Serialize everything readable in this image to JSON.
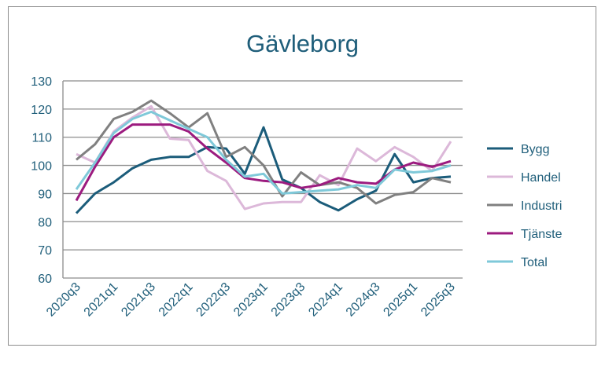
{
  "chart_data": {
    "type": "line",
    "title": "Gävleborg",
    "xlabel": "",
    "ylabel": "",
    "ylim": [
      60,
      130
    ],
    "yticks": [
      60,
      70,
      80,
      90,
      100,
      110,
      120,
      130
    ],
    "x": [
      "2020q3",
      "2020q4",
      "2021q1",
      "2021q2",
      "2021q3",
      "2021q4",
      "2022q1",
      "2022q2",
      "2022q3",
      "2022q4",
      "2023q1",
      "2023q2",
      "2023q3",
      "2023q4",
      "2024q1",
      "2024q2",
      "2024q3",
      "2024q4",
      "2025q1",
      "2025q2",
      "2025q3"
    ],
    "xtick_labels": [
      "2020q3",
      "2021q1",
      "2021q3",
      "2022q1",
      "2022q3",
      "2023q1",
      "2023q3",
      "2024q1",
      "2024q3",
      "2025q1",
      "2025q3"
    ],
    "grid": true,
    "legend_position": "right",
    "series": [
      {
        "name": "Bygg",
        "color": "#1b5c7a",
        "values": [
          83,
          90,
          94,
          99,
          102,
          103,
          103,
          106.5,
          106,
          97,
          113.5,
          95,
          92,
          87,
          84,
          88,
          91,
          104,
          94,
          95.5,
          96
        ]
      },
      {
        "name": "Handel",
        "color": "#dcb8d9",
        "values": [
          104,
          101,
          112,
          117,
          121,
          109.5,
          109,
          98,
          94.5,
          84.5,
          86.5,
          87,
          87,
          96.5,
          93,
          106,
          101.5,
          106.5,
          103,
          98,
          108.5
        ]
      },
      {
        "name": "Industri",
        "color": "#808080",
        "values": [
          102,
          107.5,
          116.5,
          119,
          123,
          118.5,
          113.5,
          118.5,
          103,
          106.5,
          100,
          89,
          97.5,
          93,
          94,
          92,
          86.5,
          89.5,
          90.5,
          95.5,
          94
        ]
      },
      {
        "name": "Tjänste",
        "color": "#9c1b7f",
        "values": [
          87.5,
          99.5,
          110,
          114.5,
          114.5,
          114.5,
          112,
          106,
          101,
          95.5,
          94.5,
          94,
          92,
          93,
          95.5,
          94,
          93.5,
          98.5,
          101,
          99.5,
          101.5
        ]
      },
      {
        "name": "Total",
        "color": "#7fc9d9",
        "values": [
          91.5,
          101,
          111.5,
          116.5,
          119,
          116,
          113,
          110,
          102,
          96,
          97,
          90,
          90.5,
          91,
          91.5,
          93,
          92,
          98.5,
          97.5,
          98,
          100
        ]
      }
    ]
  }
}
